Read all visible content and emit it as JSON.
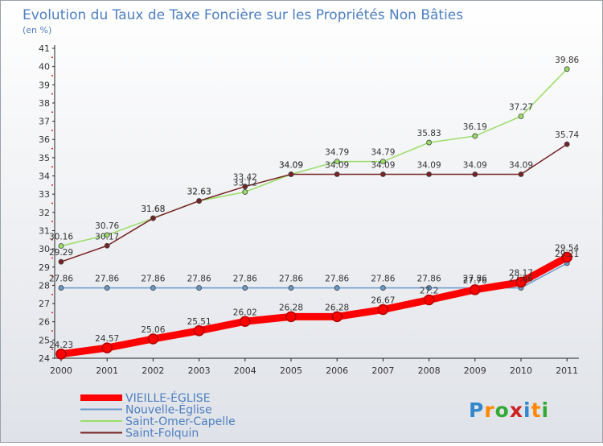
{
  "chart_data": {
    "type": "line",
    "title": "Evolution du Taux de Taxe Foncière sur les Propriétés Non Bâties",
    "subtitle": "(en %)",
    "ylim": [
      24,
      41
    ],
    "yticks": [
      24,
      25,
      26,
      27,
      28,
      29,
      30,
      31,
      32,
      33,
      34,
      35,
      36,
      37,
      38,
      39,
      40,
      41
    ],
    "x": [
      "2000",
      "2001",
      "2002",
      "2003",
      "2004",
      "2005",
      "2006",
      "2007",
      "2008",
      "2009",
      "2010",
      "2011"
    ],
    "grid": false,
    "legend_position": "bottom-left",
    "series": [
      {
        "name": "VIEILLE-ÉGLISE",
        "color": "#ff0000",
        "emphasis": true,
        "values": [
          24.23,
          24.57,
          25.06,
          25.51,
          26.02,
          26.28,
          26.28,
          26.67,
          27.2,
          27.76,
          28.17,
          29.54
        ]
      },
      {
        "name": "Nouvelle-Église",
        "color": "#6699cc",
        "emphasis": false,
        "values": [
          27.86,
          27.86,
          27.86,
          27.86,
          27.86,
          27.86,
          27.86,
          27.86,
          27.86,
          27.86,
          27.86,
          29.21
        ]
      },
      {
        "name": "Saint-Omer-Capelle",
        "color": "#99dd66",
        "emphasis": false,
        "values": [
          30.16,
          30.76,
          31.68,
          32.63,
          33.12,
          34.09,
          34.79,
          34.79,
          35.83,
          36.19,
          37.27,
          39.86
        ]
      },
      {
        "name": "Saint-Folquin",
        "color": "#772222",
        "emphasis": false,
        "values": [
          29.29,
          30.17,
          31.68,
          32.63,
          33.42,
          34.09,
          34.09,
          34.09,
          34.09,
          34.09,
          34.09,
          35.74
        ]
      }
    ]
  },
  "logo": {
    "text": "Proxiti",
    "colors": [
      "#3388cc",
      "#ff8800",
      "#33aa33",
      "#cc2222"
    ]
  }
}
